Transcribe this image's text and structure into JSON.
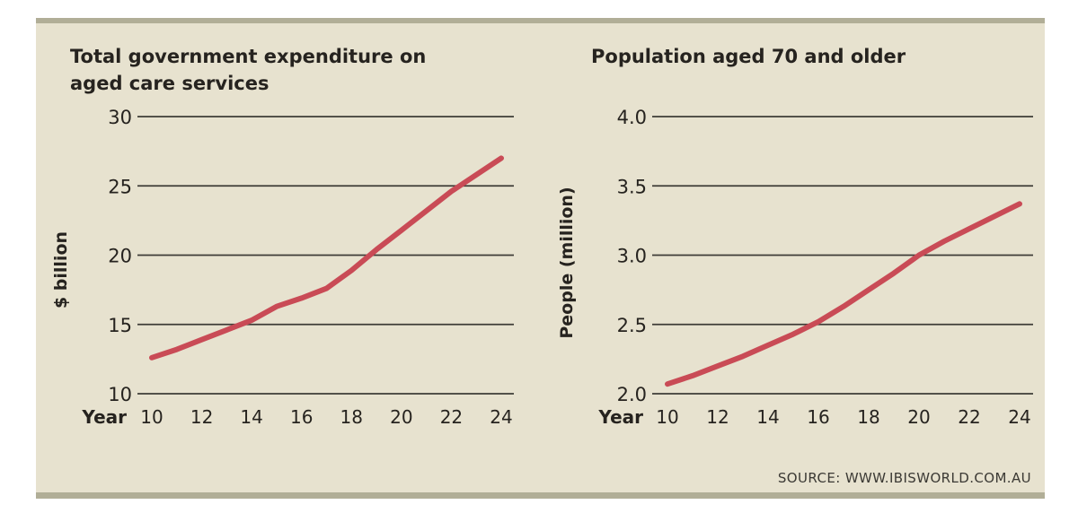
{
  "panel": {
    "background": "#e7e2cf",
    "bar_color": "#b1ae97"
  },
  "colors": {
    "line": "#c94b56",
    "grid": "#3e3c37",
    "text": "#26231f"
  },
  "source": {
    "label": "SOURCE: WWW.IBISWORLD.COM.AU"
  },
  "chart_data": [
    {
      "type": "line",
      "title_lines": [
        "Total government expenditure on",
        "aged care services"
      ],
      "ylabel": "$ billion",
      "xlabel": "Year",
      "x": [
        10,
        11,
        12,
        13,
        14,
        15,
        16,
        17,
        18,
        19,
        20,
        21,
        22,
        23,
        24
      ],
      "values": [
        12.6,
        13.2,
        13.9,
        14.6,
        15.3,
        16.3,
        16.9,
        17.6,
        18.9,
        20.4,
        21.8,
        23.2,
        24.6,
        25.8,
        27.0
      ],
      "yticks": [
        30,
        25,
        20,
        15,
        10
      ],
      "ytick_labels": [
        "30",
        "25",
        "20",
        "15",
        "10"
      ],
      "xticks": [
        10,
        12,
        14,
        16,
        18,
        20,
        22,
        24
      ],
      "xtick_labels": [
        "10",
        "12",
        "14",
        "16",
        "18",
        "20",
        "22",
        "24"
      ],
      "ylim": [
        10,
        30
      ],
      "xlim": [
        10,
        24
      ],
      "grid": true,
      "legend": "none"
    },
    {
      "type": "line",
      "title_lines": [
        "Population aged 70 and older"
      ],
      "ylabel": "People (million)",
      "xlabel": "Year",
      "x": [
        10,
        11,
        12,
        13,
        14,
        15,
        16,
        17,
        18,
        19,
        20,
        21,
        22,
        23,
        24
      ],
      "values": [
        2.07,
        2.13,
        2.2,
        2.27,
        2.35,
        2.43,
        2.52,
        2.63,
        2.75,
        2.87,
        3.0,
        3.1,
        3.19,
        3.28,
        3.37
      ],
      "yticks": [
        4.0,
        3.5,
        3.0,
        2.5,
        2.0
      ],
      "ytick_labels": [
        "4.0",
        "3.5",
        "3.0",
        "2.5",
        "2.0"
      ],
      "xticks": [
        10,
        12,
        14,
        16,
        18,
        20,
        22,
        24
      ],
      "xtick_labels": [
        "10",
        "12",
        "14",
        "16",
        "18",
        "20",
        "22",
        "24"
      ],
      "ylim": [
        2.0,
        4.0
      ],
      "xlim": [
        10,
        24
      ],
      "grid": true,
      "legend": "none"
    }
  ]
}
